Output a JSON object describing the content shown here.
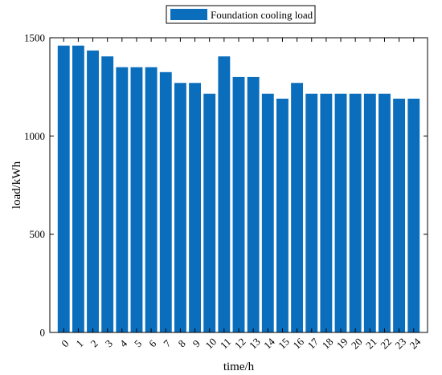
{
  "chart_data": {
    "type": "bar",
    "categories": [
      "0",
      "1",
      "2",
      "3",
      "4",
      "5",
      "6",
      "7",
      "8",
      "9",
      "10",
      "11",
      "12",
      "13",
      "14",
      "15",
      "16",
      "17",
      "18",
      "19",
      "20",
      "21",
      "22",
      "23",
      "24"
    ],
    "series": [
      {
        "name": "Foundation cooling load",
        "values": [
          1460,
          1460,
          1435,
          1405,
          1350,
          1350,
          1350,
          1325,
          1270,
          1270,
          1215,
          1405,
          1300,
          1300,
          1215,
          1190,
          1270,
          1215,
          1215,
          1215,
          1215,
          1215,
          1215,
          1190,
          1190
        ]
      }
    ],
    "xlabel": "time/h",
    "ylabel": "load/kWh",
    "ylim": [
      0,
      1500
    ],
    "yticks": [
      0,
      500,
      1000,
      1500
    ],
    "legend_position": "top-center",
    "bar_color": "#0a6ebd",
    "grid": false
  }
}
